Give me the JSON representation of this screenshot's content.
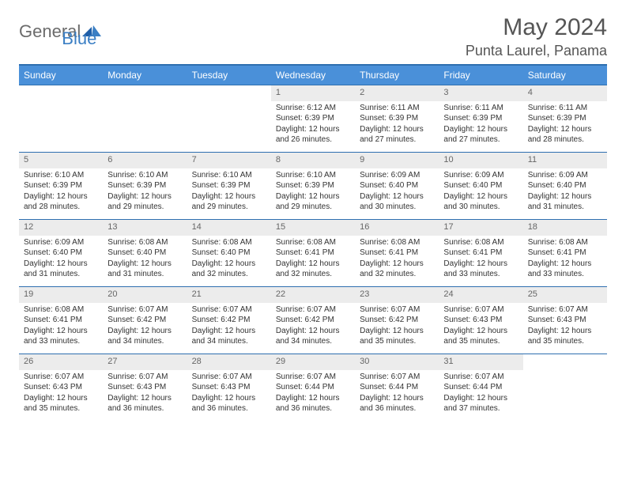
{
  "logo": {
    "word1": "General",
    "word2": "Blue"
  },
  "title": "May 2024",
  "location": "Punta Laurel, Panama",
  "colors": {
    "header_bg": "#4a90d9",
    "border": "#2e6fb0",
    "daynum_bg": "#ececec",
    "text": "#333333",
    "logo_gray": "#6b6b6b",
    "logo_blue": "#3b7fc4"
  },
  "weekdays": [
    "Sunday",
    "Monday",
    "Tuesday",
    "Wednesday",
    "Thursday",
    "Friday",
    "Saturday"
  ],
  "weeks": [
    [
      {
        "n": "",
        "sr": "",
        "ss": "",
        "dl1": "",
        "dl2": ""
      },
      {
        "n": "",
        "sr": "",
        "ss": "",
        "dl1": "",
        "dl2": ""
      },
      {
        "n": "",
        "sr": "",
        "ss": "",
        "dl1": "",
        "dl2": ""
      },
      {
        "n": "1",
        "sr": "Sunrise: 6:12 AM",
        "ss": "Sunset: 6:39 PM",
        "dl1": "Daylight: 12 hours",
        "dl2": "and 26 minutes."
      },
      {
        "n": "2",
        "sr": "Sunrise: 6:11 AM",
        "ss": "Sunset: 6:39 PM",
        "dl1": "Daylight: 12 hours",
        "dl2": "and 27 minutes."
      },
      {
        "n": "3",
        "sr": "Sunrise: 6:11 AM",
        "ss": "Sunset: 6:39 PM",
        "dl1": "Daylight: 12 hours",
        "dl2": "and 27 minutes."
      },
      {
        "n": "4",
        "sr": "Sunrise: 6:11 AM",
        "ss": "Sunset: 6:39 PM",
        "dl1": "Daylight: 12 hours",
        "dl2": "and 28 minutes."
      }
    ],
    [
      {
        "n": "5",
        "sr": "Sunrise: 6:10 AM",
        "ss": "Sunset: 6:39 PM",
        "dl1": "Daylight: 12 hours",
        "dl2": "and 28 minutes."
      },
      {
        "n": "6",
        "sr": "Sunrise: 6:10 AM",
        "ss": "Sunset: 6:39 PM",
        "dl1": "Daylight: 12 hours",
        "dl2": "and 29 minutes."
      },
      {
        "n": "7",
        "sr": "Sunrise: 6:10 AM",
        "ss": "Sunset: 6:39 PM",
        "dl1": "Daylight: 12 hours",
        "dl2": "and 29 minutes."
      },
      {
        "n": "8",
        "sr": "Sunrise: 6:10 AM",
        "ss": "Sunset: 6:39 PM",
        "dl1": "Daylight: 12 hours",
        "dl2": "and 29 minutes."
      },
      {
        "n": "9",
        "sr": "Sunrise: 6:09 AM",
        "ss": "Sunset: 6:40 PM",
        "dl1": "Daylight: 12 hours",
        "dl2": "and 30 minutes."
      },
      {
        "n": "10",
        "sr": "Sunrise: 6:09 AM",
        "ss": "Sunset: 6:40 PM",
        "dl1": "Daylight: 12 hours",
        "dl2": "and 30 minutes."
      },
      {
        "n": "11",
        "sr": "Sunrise: 6:09 AM",
        "ss": "Sunset: 6:40 PM",
        "dl1": "Daylight: 12 hours",
        "dl2": "and 31 minutes."
      }
    ],
    [
      {
        "n": "12",
        "sr": "Sunrise: 6:09 AM",
        "ss": "Sunset: 6:40 PM",
        "dl1": "Daylight: 12 hours",
        "dl2": "and 31 minutes."
      },
      {
        "n": "13",
        "sr": "Sunrise: 6:08 AM",
        "ss": "Sunset: 6:40 PM",
        "dl1": "Daylight: 12 hours",
        "dl2": "and 31 minutes."
      },
      {
        "n": "14",
        "sr": "Sunrise: 6:08 AM",
        "ss": "Sunset: 6:40 PM",
        "dl1": "Daylight: 12 hours",
        "dl2": "and 32 minutes."
      },
      {
        "n": "15",
        "sr": "Sunrise: 6:08 AM",
        "ss": "Sunset: 6:41 PM",
        "dl1": "Daylight: 12 hours",
        "dl2": "and 32 minutes."
      },
      {
        "n": "16",
        "sr": "Sunrise: 6:08 AM",
        "ss": "Sunset: 6:41 PM",
        "dl1": "Daylight: 12 hours",
        "dl2": "and 32 minutes."
      },
      {
        "n": "17",
        "sr": "Sunrise: 6:08 AM",
        "ss": "Sunset: 6:41 PM",
        "dl1": "Daylight: 12 hours",
        "dl2": "and 33 minutes."
      },
      {
        "n": "18",
        "sr": "Sunrise: 6:08 AM",
        "ss": "Sunset: 6:41 PM",
        "dl1": "Daylight: 12 hours",
        "dl2": "and 33 minutes."
      }
    ],
    [
      {
        "n": "19",
        "sr": "Sunrise: 6:08 AM",
        "ss": "Sunset: 6:41 PM",
        "dl1": "Daylight: 12 hours",
        "dl2": "and 33 minutes."
      },
      {
        "n": "20",
        "sr": "Sunrise: 6:07 AM",
        "ss": "Sunset: 6:42 PM",
        "dl1": "Daylight: 12 hours",
        "dl2": "and 34 minutes."
      },
      {
        "n": "21",
        "sr": "Sunrise: 6:07 AM",
        "ss": "Sunset: 6:42 PM",
        "dl1": "Daylight: 12 hours",
        "dl2": "and 34 minutes."
      },
      {
        "n": "22",
        "sr": "Sunrise: 6:07 AM",
        "ss": "Sunset: 6:42 PM",
        "dl1": "Daylight: 12 hours",
        "dl2": "and 34 minutes."
      },
      {
        "n": "23",
        "sr": "Sunrise: 6:07 AM",
        "ss": "Sunset: 6:42 PM",
        "dl1": "Daylight: 12 hours",
        "dl2": "and 35 minutes."
      },
      {
        "n": "24",
        "sr": "Sunrise: 6:07 AM",
        "ss": "Sunset: 6:43 PM",
        "dl1": "Daylight: 12 hours",
        "dl2": "and 35 minutes."
      },
      {
        "n": "25",
        "sr": "Sunrise: 6:07 AM",
        "ss": "Sunset: 6:43 PM",
        "dl1": "Daylight: 12 hours",
        "dl2": "and 35 minutes."
      }
    ],
    [
      {
        "n": "26",
        "sr": "Sunrise: 6:07 AM",
        "ss": "Sunset: 6:43 PM",
        "dl1": "Daylight: 12 hours",
        "dl2": "and 35 minutes."
      },
      {
        "n": "27",
        "sr": "Sunrise: 6:07 AM",
        "ss": "Sunset: 6:43 PM",
        "dl1": "Daylight: 12 hours",
        "dl2": "and 36 minutes."
      },
      {
        "n": "28",
        "sr": "Sunrise: 6:07 AM",
        "ss": "Sunset: 6:43 PM",
        "dl1": "Daylight: 12 hours",
        "dl2": "and 36 minutes."
      },
      {
        "n": "29",
        "sr": "Sunrise: 6:07 AM",
        "ss": "Sunset: 6:44 PM",
        "dl1": "Daylight: 12 hours",
        "dl2": "and 36 minutes."
      },
      {
        "n": "30",
        "sr": "Sunrise: 6:07 AM",
        "ss": "Sunset: 6:44 PM",
        "dl1": "Daylight: 12 hours",
        "dl2": "and 36 minutes."
      },
      {
        "n": "31",
        "sr": "Sunrise: 6:07 AM",
        "ss": "Sunset: 6:44 PM",
        "dl1": "Daylight: 12 hours",
        "dl2": "and 37 minutes."
      },
      {
        "n": "",
        "sr": "",
        "ss": "",
        "dl1": "",
        "dl2": ""
      }
    ]
  ]
}
